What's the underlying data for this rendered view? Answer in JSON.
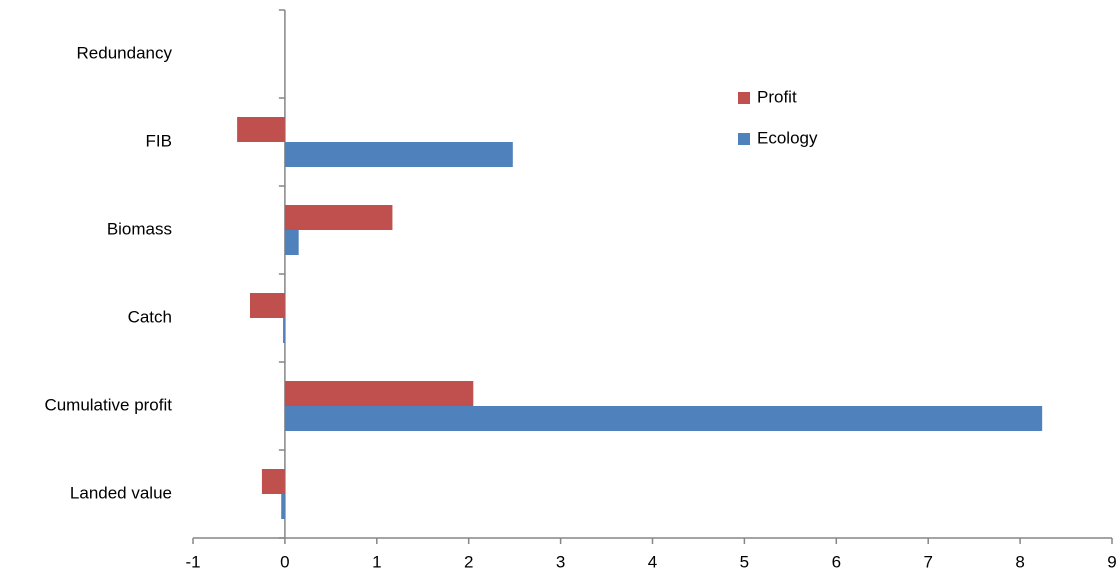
{
  "chart_data": {
    "type": "bar",
    "orientation": "horizontal",
    "categories": [
      "Redundancy",
      "FIB",
      "Biomass",
      "Catch",
      "Cumulative profit",
      "Landed value"
    ],
    "series": [
      {
        "name": "Profit",
        "color": "#c0504d",
        "values": [
          0,
          -0.52,
          1.17,
          -0.38,
          2.05,
          -0.25
        ]
      },
      {
        "name": "Ecology",
        "color": "#4f81bd",
        "values": [
          0,
          2.48,
          0.15,
          -0.02,
          8.24,
          -0.04
        ]
      }
    ],
    "xlim": [
      -1,
      9
    ],
    "xticks": [
      -1,
      0,
      1,
      2,
      3,
      4,
      5,
      6,
      7,
      8,
      9
    ]
  }
}
